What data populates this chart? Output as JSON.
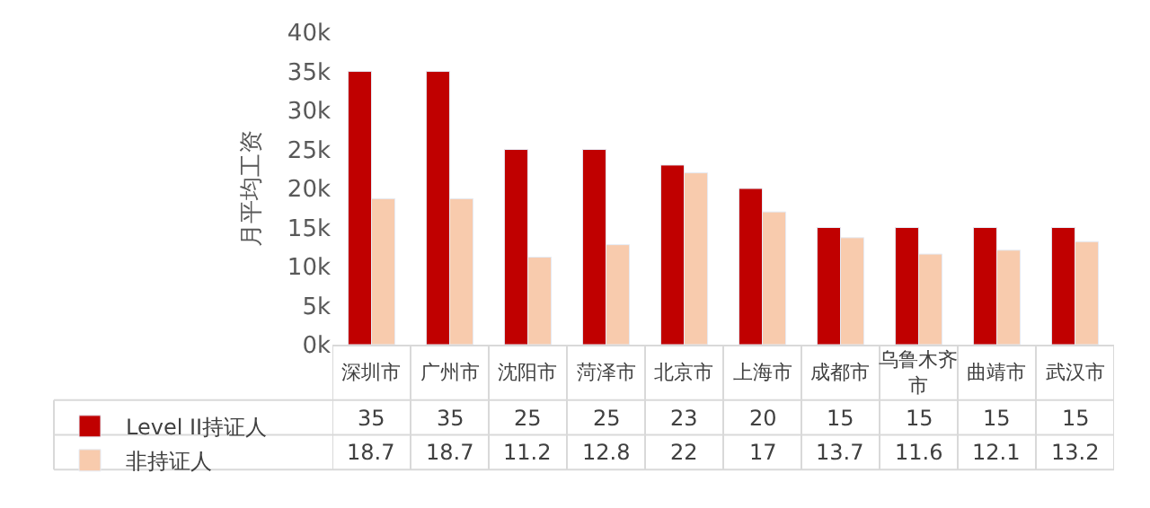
{
  "chart_data": {
    "type": "bar",
    "ylabel": "月平均工资",
    "categories": [
      "深圳市",
      "广州市",
      "沈阳市",
      "菏泽市",
      "北京市",
      "上海市",
      "成都市",
      "乌鲁木齐市",
      "曲靖市",
      "武汉市"
    ],
    "series": [
      {
        "name": "Level II持证人",
        "color": "#c00000",
        "values": [
          35,
          35,
          25,
          25,
          23,
          20,
          15,
          15,
          15,
          15
        ]
      },
      {
        "name": "非持证人",
        "color": "#f8cbad",
        "values": [
          18.7,
          18.7,
          11.2,
          12.8,
          22,
          17,
          13.7,
          11.6,
          12.1,
          13.2
        ]
      }
    ],
    "ylim": [
      0,
      40
    ],
    "yticks": [
      {
        "value": 0,
        "label": "0k"
      },
      {
        "value": 5,
        "label": "5k"
      },
      {
        "value": 10,
        "label": "10k"
      },
      {
        "value": 15,
        "label": "15k"
      },
      {
        "value": 20,
        "label": "20k"
      },
      {
        "value": 25,
        "label": "25k"
      },
      {
        "value": 30,
        "label": "30k"
      },
      {
        "value": 35,
        "label": "35k"
      },
      {
        "value": 40,
        "label": "40k"
      }
    ],
    "data_labels": true,
    "legend": "bottom left"
  }
}
